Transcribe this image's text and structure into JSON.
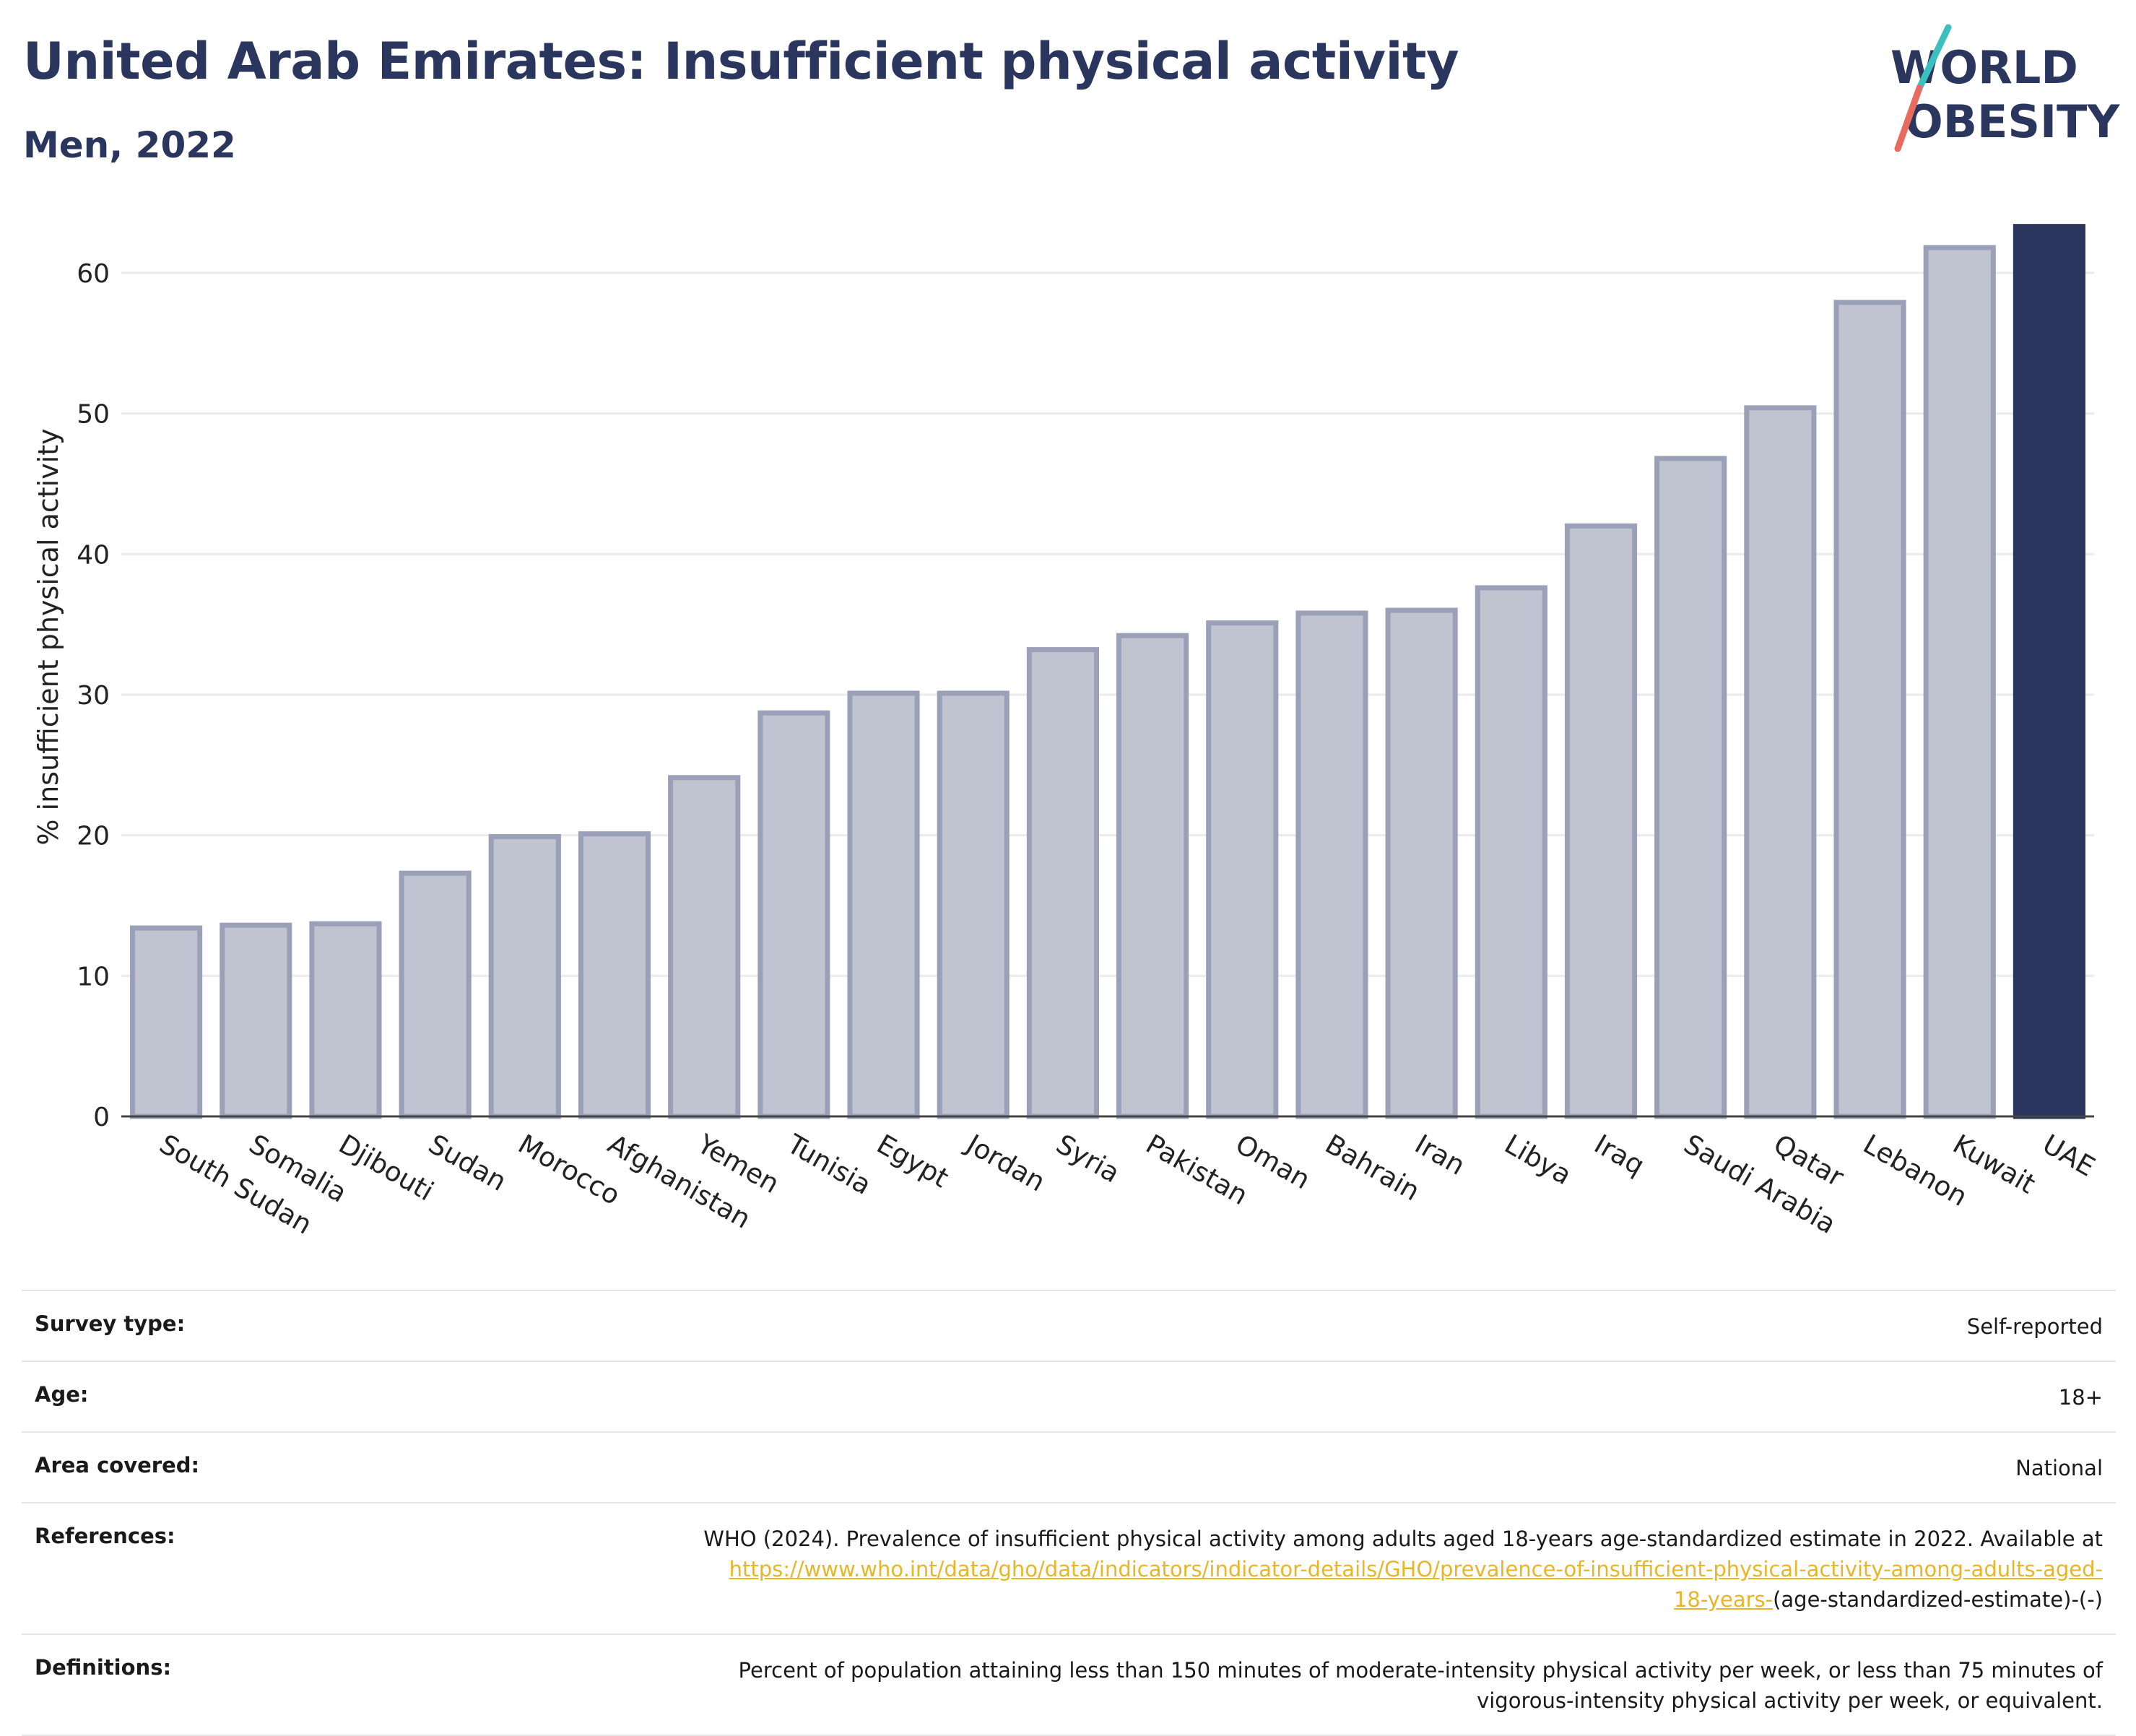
{
  "header": {
    "title": "United Arab Emirates: Insufficient physical activity",
    "subtitle": "Men, 2022"
  },
  "logo": {
    "line1": "WORLD",
    "line2": "OBESITY",
    "accent_teal": "#3cc0bf",
    "accent_coral": "#e86b5f"
  },
  "colors": {
    "bar_fill": "#c0c3d0",
    "bar_stroke": "#9aa0b8",
    "highlight": "#2b365e",
    "grid": "#ebebeb",
    "axis": "#444444",
    "link": "#e6b628"
  },
  "chart_data": {
    "type": "bar",
    "title": "United Arab Emirates: Insufficient physical activity",
    "subtitle": "Men, 2022",
    "xlabel": "",
    "ylabel": "% insufficient physical activity",
    "ylim": [
      0,
      64
    ],
    "yticks": [
      0,
      10,
      20,
      30,
      40,
      50,
      60
    ],
    "grid": true,
    "highlight_category": "UAE",
    "categories": [
      "South Sudan",
      "Somalia",
      "Djibouti",
      "Sudan",
      "Morocco",
      "Afghanistan",
      "Yemen",
      "Tunisia",
      "Egypt",
      "Jordan",
      "Syria",
      "Pakistan",
      "Oman",
      "Bahrain",
      "Iran",
      "Libya",
      "Iraq",
      "Saudi Arabia",
      "Qatar",
      "Lebanon",
      "Kuwait",
      "UAE"
    ],
    "values": [
      13.4,
      13.6,
      13.7,
      17.3,
      19.9,
      20.1,
      24.1,
      28.7,
      30.1,
      30.1,
      33.2,
      34.2,
      35.1,
      35.8,
      36.0,
      37.6,
      42.0,
      46.8,
      50.4,
      57.9,
      61.8,
      63.3
    ]
  },
  "info": {
    "survey_type_label": "Survey type:",
    "survey_type_value": "Self-reported",
    "age_label": "Age:",
    "age_value": "18+",
    "area_label": "Area covered:",
    "area_value": "National",
    "references_label": "References:",
    "references_text": "WHO (2024). Prevalence of insufficient physical activity among adults aged 18-years age-standardized estimate in 2022. Available at",
    "references_link_part1": "https://www.who.int/data/gho/data/indicators/indicator-details/GHO/prevalence-of-insufficient-physical-activity-among-adults-aged-",
    "references_link_part2": "18-years-",
    "references_suffix": "(age-standardized-estimate)-(-)",
    "definitions_label": "Definitions:",
    "definitions_line1": "Percent of population attaining less than 150 minutes of moderate-intensity physical activity per week, or less than 75 minutes of",
    "definitions_line2": "vigorous-intensity physical activity per week, or equivalent."
  }
}
